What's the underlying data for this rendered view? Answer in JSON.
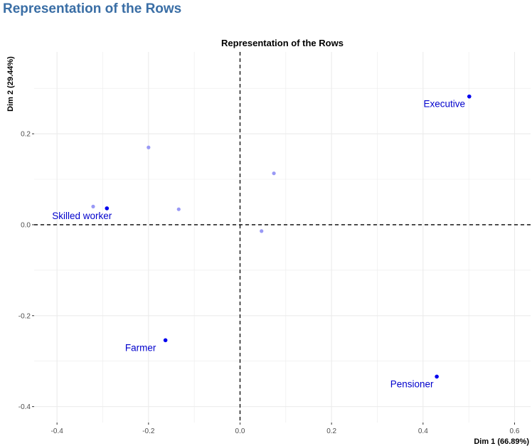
{
  "page": {
    "heading": "Representation of the Rows"
  },
  "colors": {
    "heading": "#3a6ea5",
    "active_point": "#0000ee",
    "supplementary_point": "#9999f5",
    "label": "#0000cc",
    "grid": "#ebebeb",
    "reference_line": "#000000"
  },
  "chart_data": {
    "type": "scatter",
    "title": "Representation of the Rows",
    "xlabel": "Dim 1 (66.89%)",
    "ylabel": "Dim 2 (29.44%)",
    "xlim": [
      -0.45,
      0.635
    ],
    "ylim": [
      -0.435,
      0.38
    ],
    "x_ticks": [
      -0.4,
      -0.2,
      0.0,
      0.2,
      0.4,
      0.6
    ],
    "x_tick_labels": [
      "-0.4",
      "-0.2",
      "0.0",
      "0.2",
      "0.4",
      "0.6"
    ],
    "y_ticks": [
      -0.4,
      -0.2,
      0.0,
      0.2
    ],
    "y_tick_labels": [
      "-0.4",
      "-0.2",
      "0.0",
      "0.2"
    ],
    "grid": true,
    "reference_lines": {
      "x": 0,
      "y": 0,
      "style": "dashed"
    },
    "series": [
      {
        "role": "active",
        "points": [
          {
            "label": "Executive",
            "x": 0.501,
            "y": 0.282
          },
          {
            "label": "Skilled worker",
            "x": -0.291,
            "y": 0.036
          },
          {
            "label": "Farmer",
            "x": -0.163,
            "y": -0.254
          },
          {
            "label": "Pensioner",
            "x": 0.43,
            "y": -0.334
          }
        ]
      },
      {
        "role": "supplementary",
        "points": [
          {
            "x": -0.2,
            "y": 0.17
          },
          {
            "x": 0.074,
            "y": 0.113
          },
          {
            "x": -0.321,
            "y": 0.04
          },
          {
            "x": -0.134,
            "y": 0.034
          },
          {
            "x": 0.047,
            "y": -0.014
          }
        ]
      }
    ]
  }
}
